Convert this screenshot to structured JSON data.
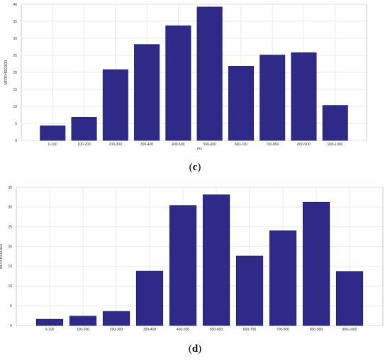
{
  "chart_data": [
    {
      "type": "bar",
      "panel": "c",
      "categories": [
        "0-100",
        "100-200",
        "200-300",
        "300-400",
        "400-500",
        "500-600",
        "600-700",
        "700-800",
        "800-900",
        "900-1000"
      ],
      "values": [
        4.3,
        6.8,
        20.8,
        28.2,
        33.7,
        39.2,
        21.8,
        25.1,
        25.8,
        10.3
      ],
      "xlabel": "ms",
      "ylabel": "MFRFHSEDDD",
      "ylim": [
        0,
        40
      ],
      "yticks": [
        0,
        5,
        10,
        15,
        20,
        25,
        30,
        35,
        40
      ],
      "grid": true,
      "bar_color": "#2f2a87"
    },
    {
      "type": "bar",
      "panel": "d",
      "categories": [
        "0-100",
        "100-200",
        "200-300",
        "300-400",
        "400-500",
        "500-600",
        "600-700",
        "700-800",
        "800-900",
        "900-1000"
      ],
      "values": [
        1.6,
        2.4,
        3.6,
        13.8,
        30.4,
        33.1,
        17.6,
        24.0,
        31.2,
        13.7
      ],
      "xlabel": "",
      "ylabel": "MFRFHSEDDD",
      "ylim": [
        0,
        35
      ],
      "yticks": [
        0,
        5,
        10,
        15,
        20,
        25,
        30,
        35
      ],
      "grid": true,
      "bar_color": "#2f2a87"
    }
  ],
  "captions": [
    "c",
    "d"
  ]
}
